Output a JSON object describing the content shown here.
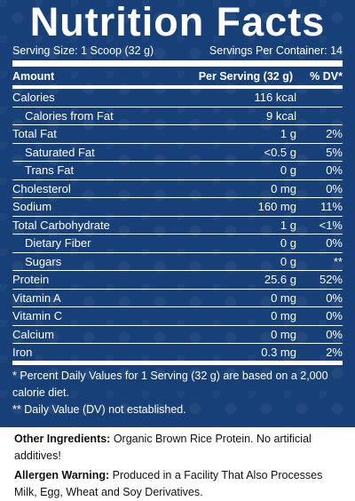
{
  "label": {
    "title": "Nutrition Facts",
    "serving_size": "Serving Size: 1 Scoop (32 g)",
    "servings_per_container": "Servings Per Container: 14",
    "header": {
      "amount": "Amount",
      "per_serving": "Per Serving (32 g)",
      "dv": "% DV*"
    },
    "rows": [
      {
        "name": "Calories",
        "amount": "116 kcal",
        "dv": "",
        "sub": false
      },
      {
        "name": "Calories from Fat",
        "amount": "9 kcal",
        "dv": "",
        "sub": true
      },
      {
        "name": "Total Fat",
        "amount": "1 g",
        "dv": "2%",
        "sub": false
      },
      {
        "name": "Saturated Fat",
        "amount": "<0.5 g",
        "dv": "5%",
        "sub": true
      },
      {
        "name": "Trans Fat",
        "amount": "0 g",
        "dv": "0%",
        "sub": true
      },
      {
        "name": "Cholesterol",
        "amount": "0 mg",
        "dv": "0%",
        "sub": false
      },
      {
        "name": "Sodium",
        "amount": "160 mg",
        "dv": "11%",
        "sub": false
      },
      {
        "name": "Total Carbohydrate",
        "amount": "1 g",
        "dv": "<1%",
        "sub": false
      },
      {
        "name": "Dietary Fiber",
        "amount": "0 g",
        "dv": "0%",
        "sub": true
      },
      {
        "name": "Sugars",
        "amount": "0 g",
        "dv": "**",
        "sub": true
      },
      {
        "name": "Protein",
        "amount": "25.6 g",
        "dv": "52%",
        "sub": false
      },
      {
        "name": "Vitamin A",
        "amount": "0 mg",
        "dv": "0%",
        "sub": false
      },
      {
        "name": "Vitamin C",
        "amount": "0 mg",
        "dv": "0%",
        "sub": false
      },
      {
        "name": "Calcium",
        "amount": "0 mg",
        "dv": "0%",
        "sub": false
      },
      {
        "name": "Iron",
        "amount": "0.3 mg",
        "dv": "2%",
        "sub": false
      }
    ],
    "footnote_1": "* Percent Daily Values for 1 Serving (32 g) are based on a 2,000 calorie diet.",
    "footnote_2": "** Daily Value (DV) not established."
  },
  "ingredients": {
    "label": "Other Ingredients:",
    "text": " Organic Brown Rice Protein. No artificial additives!"
  },
  "allergen": {
    "label": "Allergen Warning:",
    "text": " Produced in a Facility That Also Processes Milk, Egg, Wheat and Soy Derivatives."
  },
  "colors": {
    "panel": "#173f78",
    "text": "#ffffff"
  }
}
